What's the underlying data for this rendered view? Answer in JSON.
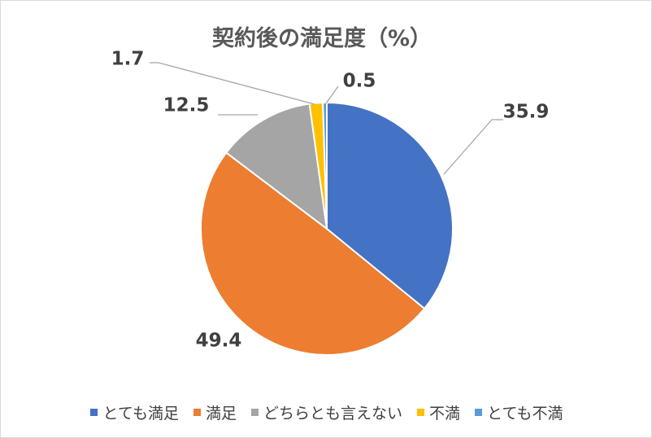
{
  "chart_data": {
    "type": "pie",
    "title": "契約後の満足度（%）",
    "categories": [
      "とても満足",
      "満足",
      "どちらとも言えない",
      "不満",
      "とても不満"
    ],
    "values": [
      35.9,
      49.4,
      12.5,
      1.7,
      0.5
    ],
    "data_labels": [
      "35.9",
      "49.4",
      "12.5",
      "1.7",
      "0.5"
    ],
    "colors": [
      "#4472c4",
      "#ed7d31",
      "#a5a5a5",
      "#ffc000",
      "#5b9bd5"
    ],
    "start_angle_deg": 0,
    "direction": "clockwise",
    "legend_position": "bottom"
  }
}
